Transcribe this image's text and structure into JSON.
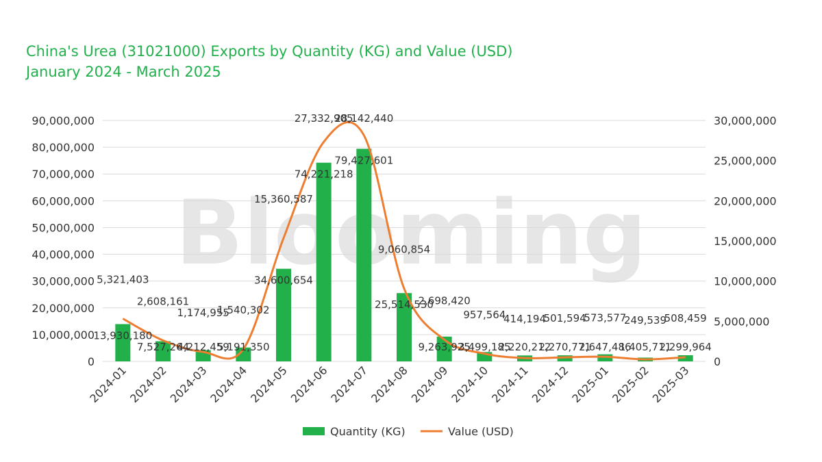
{
  "header": {
    "title": "China's Urea (31021000) Exports by Quantity (KG) and Value (USD)",
    "subtitle": "January 2024 - March 2025"
  },
  "watermark": "Blooming",
  "colors": {
    "title": "#21b04b",
    "bar": "#22b04b",
    "line": "#ed7d31",
    "grid": "#d9d9d9",
    "text": "#333333"
  },
  "chart_data": {
    "type": "bar",
    "categories": [
      "2024-01",
      "2024-02",
      "2024-03",
      "2024-04",
      "2024-05",
      "2024-06",
      "2024-07",
      "2024-08",
      "2024-09",
      "2024-10",
      "2024-11",
      "2024-12",
      "2025-01",
      "2025-02",
      "2025-03"
    ],
    "series": [
      {
        "name": "Quantity (KG)",
        "type": "bar",
        "axis": "left",
        "values": [
          13930180,
          7527264,
          4212459,
          5191350,
          34600654,
          74221218,
          79427601,
          25514530,
          9263925,
          3499185,
          2220212,
          2270771,
          2647486,
          1405711,
          2299964
        ]
      },
      {
        "name": "Value (USD)",
        "type": "line",
        "axis": "right",
        "values": [
          5321403,
          2608161,
          1174955,
          1540302,
          15360587,
          27332905,
          28142440,
          9060854,
          2698420,
          957564,
          414194,
          501594,
          573577,
          249539,
          508459
        ]
      }
    ],
    "yleft": {
      "min": 0,
      "max": 90000000,
      "step": 10000000,
      "ticks": [
        "0",
        "10,000,000",
        "20,000,000",
        "30,000,000",
        "40,000,000",
        "50,000,000",
        "60,000,000",
        "70,000,000",
        "80,000,000",
        "90,000,000"
      ]
    },
    "yright": {
      "min": 0,
      "max": 30000000,
      "step": 5000000,
      "ticks": [
        "0",
        "5,000,000",
        "10,000,000",
        "15,000,000",
        "20,000,000",
        "25,000,000",
        "30,000,000"
      ]
    },
    "bar_labels": [
      "13,930,180",
      "7,527,264",
      "4,212,459",
      "5,191,350",
      "34,600,654",
      "74,221,218",
      "79,427,601",
      "25,514,530",
      "9,263,925",
      "3,499,185",
      "2,220,212",
      "2,270,771",
      "2,647,486",
      "1,405,711",
      "2,299,964"
    ],
    "line_labels": [
      "5,321,403",
      "2,608,161",
      "1,174,955",
      "1,540,302",
      "15,360,587",
      "27,332,905",
      "28,142,440",
      "9,060,854",
      "2,698,420",
      "957,564",
      "414,194",
      "501,594",
      "573,577",
      "249,539",
      "508,459"
    ],
    "grid": true,
    "legend_position": "bottom"
  }
}
